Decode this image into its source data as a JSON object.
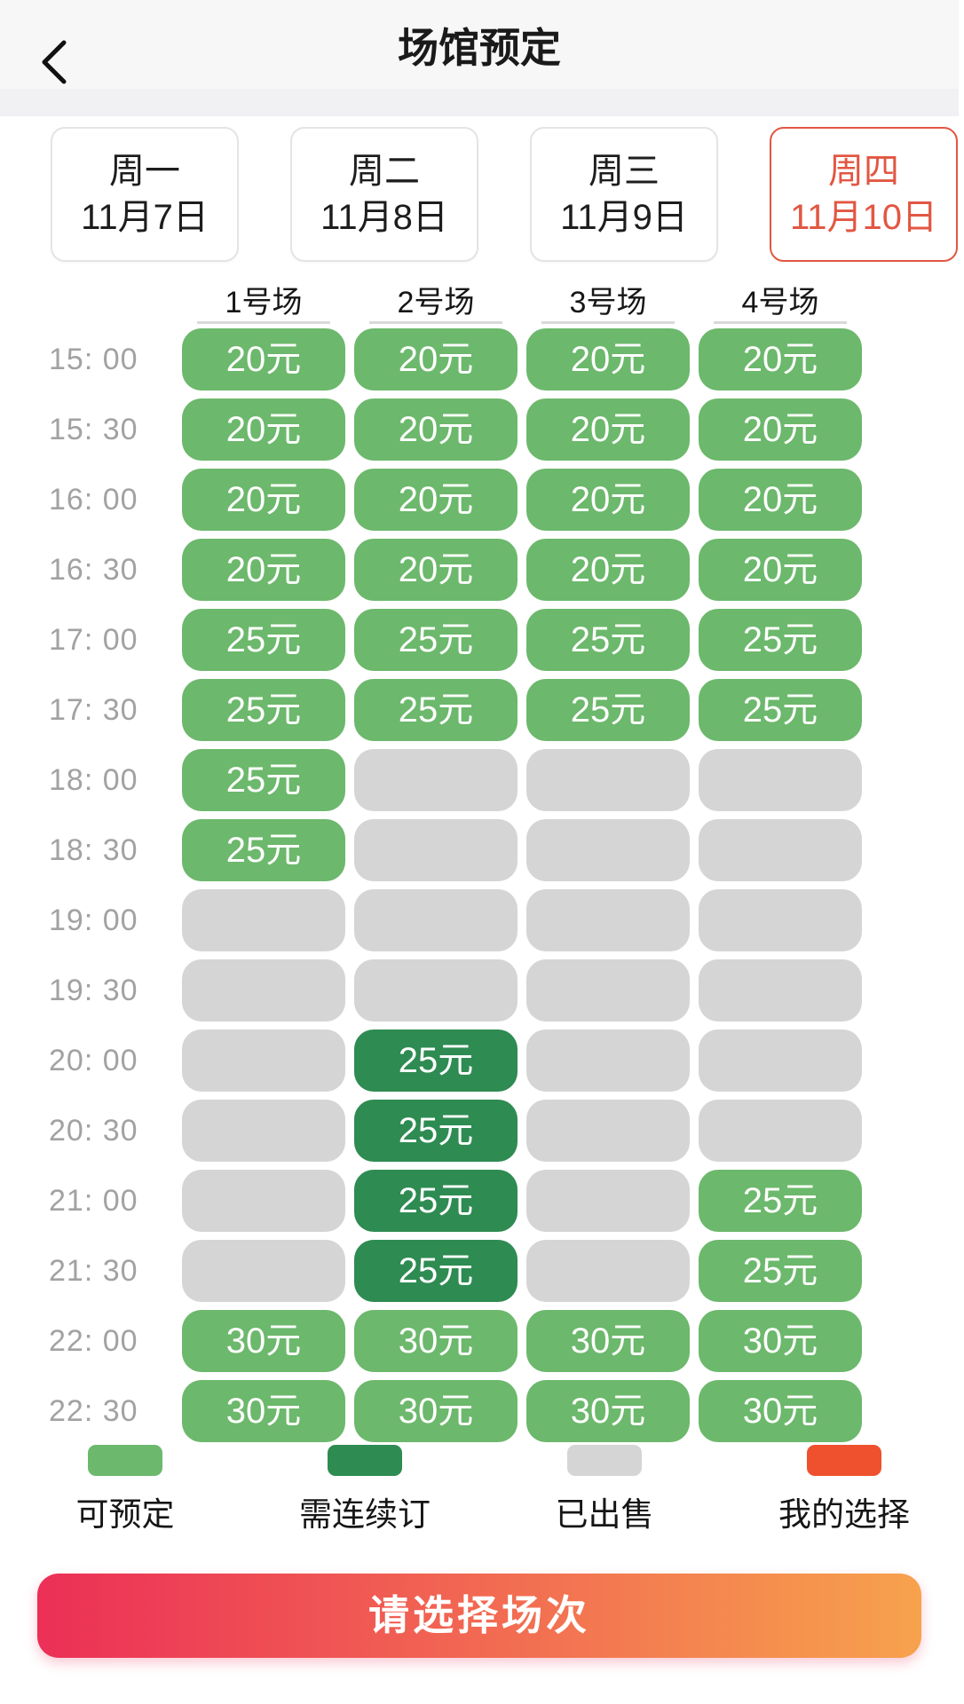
{
  "header": {
    "title": "场馆预定"
  },
  "date_tabs": [
    {
      "day": "周一",
      "date": "11月7日",
      "selected": false
    },
    {
      "day": "周二",
      "date": "11月8日",
      "selected": false
    },
    {
      "day": "周三",
      "date": "11月9日",
      "selected": false
    },
    {
      "day": "周四",
      "date": "11月10日",
      "selected": true
    }
  ],
  "courts": [
    "1号场",
    "2号场",
    "3号场",
    "4号场"
  ],
  "rows": [
    {
      "time": "15: 00",
      "cells": [
        {
          "state": "available",
          "price": "20元"
        },
        {
          "state": "available",
          "price": "20元"
        },
        {
          "state": "available",
          "price": "20元"
        },
        {
          "state": "available",
          "price": "20元"
        }
      ]
    },
    {
      "time": "15: 30",
      "cells": [
        {
          "state": "available",
          "price": "20元"
        },
        {
          "state": "available",
          "price": "20元"
        },
        {
          "state": "available",
          "price": "20元"
        },
        {
          "state": "available",
          "price": "20元"
        }
      ]
    },
    {
      "time": "16: 00",
      "cells": [
        {
          "state": "available",
          "price": "20元"
        },
        {
          "state": "available",
          "price": "20元"
        },
        {
          "state": "available",
          "price": "20元"
        },
        {
          "state": "available",
          "price": "20元"
        }
      ]
    },
    {
      "time": "16: 30",
      "cells": [
        {
          "state": "available",
          "price": "20元"
        },
        {
          "state": "available",
          "price": "20元"
        },
        {
          "state": "available",
          "price": "20元"
        },
        {
          "state": "available",
          "price": "20元"
        }
      ]
    },
    {
      "time": "17: 00",
      "cells": [
        {
          "state": "available",
          "price": "25元"
        },
        {
          "state": "available",
          "price": "25元"
        },
        {
          "state": "available",
          "price": "25元"
        },
        {
          "state": "available",
          "price": "25元"
        }
      ]
    },
    {
      "time": "17: 30",
      "cells": [
        {
          "state": "available",
          "price": "25元"
        },
        {
          "state": "available",
          "price": "25元"
        },
        {
          "state": "available",
          "price": "25元"
        },
        {
          "state": "available",
          "price": "25元"
        }
      ]
    },
    {
      "time": "18: 00",
      "cells": [
        {
          "state": "available",
          "price": "25元"
        },
        {
          "state": "sold",
          "price": ""
        },
        {
          "state": "sold",
          "price": ""
        },
        {
          "state": "sold",
          "price": ""
        }
      ]
    },
    {
      "time": "18: 30",
      "cells": [
        {
          "state": "available",
          "price": "25元"
        },
        {
          "state": "sold",
          "price": ""
        },
        {
          "state": "sold",
          "price": ""
        },
        {
          "state": "sold",
          "price": ""
        }
      ]
    },
    {
      "time": "19: 00",
      "cells": [
        {
          "state": "sold",
          "price": ""
        },
        {
          "state": "sold",
          "price": ""
        },
        {
          "state": "sold",
          "price": ""
        },
        {
          "state": "sold",
          "price": ""
        }
      ]
    },
    {
      "time": "19: 30",
      "cells": [
        {
          "state": "sold",
          "price": ""
        },
        {
          "state": "sold",
          "price": ""
        },
        {
          "state": "sold",
          "price": ""
        },
        {
          "state": "sold",
          "price": ""
        }
      ]
    },
    {
      "time": "20: 00",
      "cells": [
        {
          "state": "sold",
          "price": ""
        },
        {
          "state": "consecutive",
          "price": "25元"
        },
        {
          "state": "sold",
          "price": ""
        },
        {
          "state": "sold",
          "price": ""
        }
      ]
    },
    {
      "time": "20: 30",
      "cells": [
        {
          "state": "sold",
          "price": ""
        },
        {
          "state": "consecutive",
          "price": "25元"
        },
        {
          "state": "sold",
          "price": ""
        },
        {
          "state": "sold",
          "price": ""
        }
      ]
    },
    {
      "time": "21: 00",
      "cells": [
        {
          "state": "sold",
          "price": ""
        },
        {
          "state": "consecutive",
          "price": "25元"
        },
        {
          "state": "sold",
          "price": ""
        },
        {
          "state": "available",
          "price": "25元"
        }
      ]
    },
    {
      "time": "21: 30",
      "cells": [
        {
          "state": "sold",
          "price": ""
        },
        {
          "state": "consecutive",
          "price": "25元"
        },
        {
          "state": "sold",
          "price": ""
        },
        {
          "state": "available",
          "price": "25元"
        }
      ]
    },
    {
      "time": "22: 00",
      "cells": [
        {
          "state": "available",
          "price": "30元"
        },
        {
          "state": "available",
          "price": "30元"
        },
        {
          "state": "available",
          "price": "30元"
        },
        {
          "state": "available",
          "price": "30元"
        }
      ]
    },
    {
      "time": "22: 30",
      "cells": [
        {
          "state": "available",
          "price": "30元"
        },
        {
          "state": "available",
          "price": "30元"
        },
        {
          "state": "available",
          "price": "30元"
        },
        {
          "state": "available",
          "price": "30元"
        }
      ]
    }
  ],
  "legend": [
    {
      "label": "可预定",
      "color": "#6cb86c"
    },
    {
      "label": "需连续订",
      "color": "#2e8b52"
    },
    {
      "label": "已出售",
      "color": "#d5d5d5"
    },
    {
      "label": "我的选择",
      "color": "#ef512e"
    }
  ],
  "footer": {
    "button_label": "请选择场次"
  },
  "colors": {
    "available": "#6cb86c",
    "consecutive": "#2e8b52",
    "sold": "#d5d5d5",
    "selected_tab": "#e25742",
    "button_gradient_start": "#ec2f57",
    "button_gradient_end": "#f7a24d"
  }
}
